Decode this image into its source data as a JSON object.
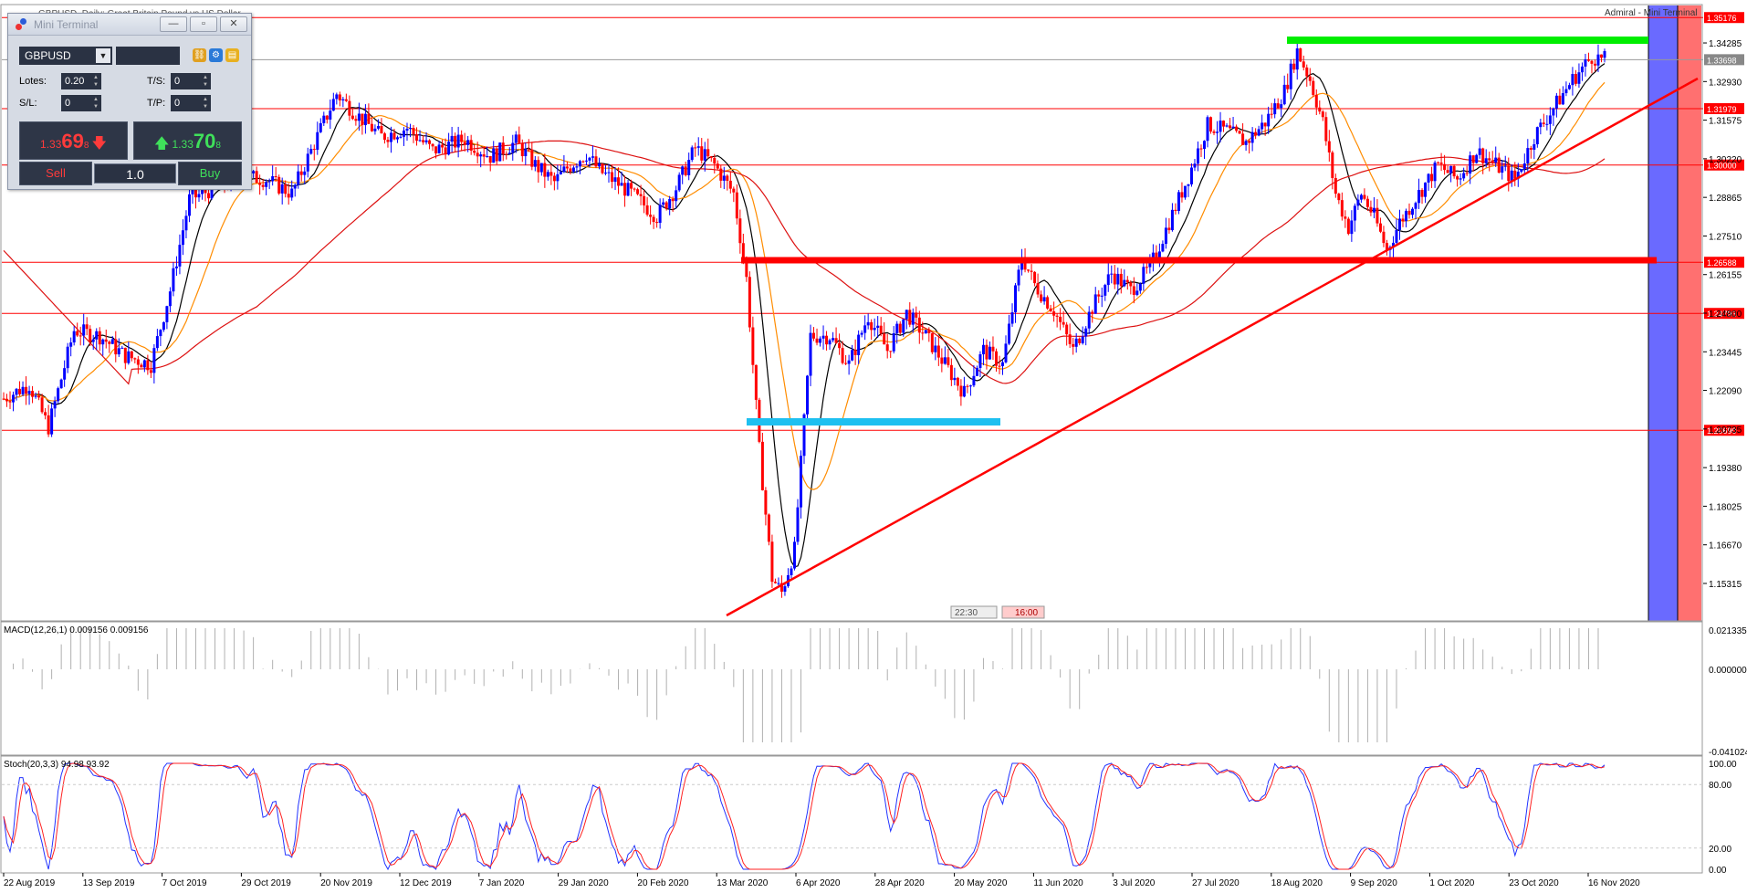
{
  "window": {
    "title": "GBPUSD, Daily:  Great Britain Pound vs US Dollar",
    "admiral_label": "Admiral - Mini Terminal"
  },
  "price_axis": {
    "ticks": [
      "1.34285",
      "1.32930",
      "1.31575",
      "1.30220",
      "1.28865",
      "1.27510",
      "1.26155",
      "1.24800",
      "1.23445",
      "1.22090",
      "1.20735",
      "1.19380",
      "1.18025",
      "1.16670",
      "1.15315"
    ],
    "current_price": "1.33698"
  },
  "horizontal_levels": [
    {
      "price": "1.35176",
      "color": "#ff0000"
    },
    {
      "price": "1.31979",
      "color": "#ff0000"
    },
    {
      "price": "1.30000",
      "color": "#ff0000"
    },
    {
      "price": "1.26588",
      "color": "#ff0000"
    },
    {
      "price": "1.24793",
      "color": "#ff0000"
    },
    {
      "price": "1.20690",
      "color": "#ff0000"
    }
  ],
  "time_axis": {
    "labels": [
      "22 Aug 2019",
      "13 Sep 2019",
      "7 Oct 2019",
      "29 Oct 2019",
      "20 Nov 2019",
      "12 Dec 2019",
      "7 Jan 2020",
      "29 Jan 2020",
      "20 Feb 2020",
      "13 Mar 2020",
      "6 Apr 2020",
      "28 Apr 2020",
      "20 May 2020",
      "11 Jun 2020",
      "3 Jul 2020",
      "27 Jul 2020",
      "18 Aug 2020",
      "9 Sep 2020",
      "1 Oct 2020",
      "23 Oct 2020",
      "16 Nov 2020"
    ]
  },
  "macd": {
    "label": "MACD(12,26,1) 0.009156 0.009156",
    "ticks": [
      "0.021335",
      "0.000000",
      "-0.041024"
    ]
  },
  "stoch": {
    "label": "Stoch(20,3,3) 94.98 93.92",
    "ticks": [
      "100.00",
      "80.00",
      "20.00",
      "0.00"
    ]
  },
  "markers": {
    "left": "22:30",
    "right": "16:00"
  },
  "colors": {
    "bull": "#0000ff",
    "bear": "#ff0000",
    "sma_fast": "#000000",
    "sma_mid": "#ff8c00",
    "sma_slow": "#dd1111",
    "resistance_top": "#00ee00",
    "support_bottom": "#1ec0f0",
    "zone_blue": "#6a6aff",
    "zone_red": "#ff7070"
  },
  "mini_terminal": {
    "title": "Mini Terminal",
    "symbol": "GBPUSD",
    "lots_label": "Lotes:",
    "lots_value": "0.20",
    "sl_label": "S/L:",
    "sl_value": "0",
    "ts_label": "T/S:",
    "ts_value": "0",
    "tp_label": "T/P:",
    "tp_value": "0",
    "sell_price_prefix": "1.33",
    "sell_price_big": "69",
    "sell_price_sup": "8",
    "buy_price_prefix": "1.33",
    "buy_price_big": "70",
    "buy_price_sup": "8",
    "sell_label": "Sell",
    "buy_label": "Buy",
    "lots_input": "1.0"
  }
}
